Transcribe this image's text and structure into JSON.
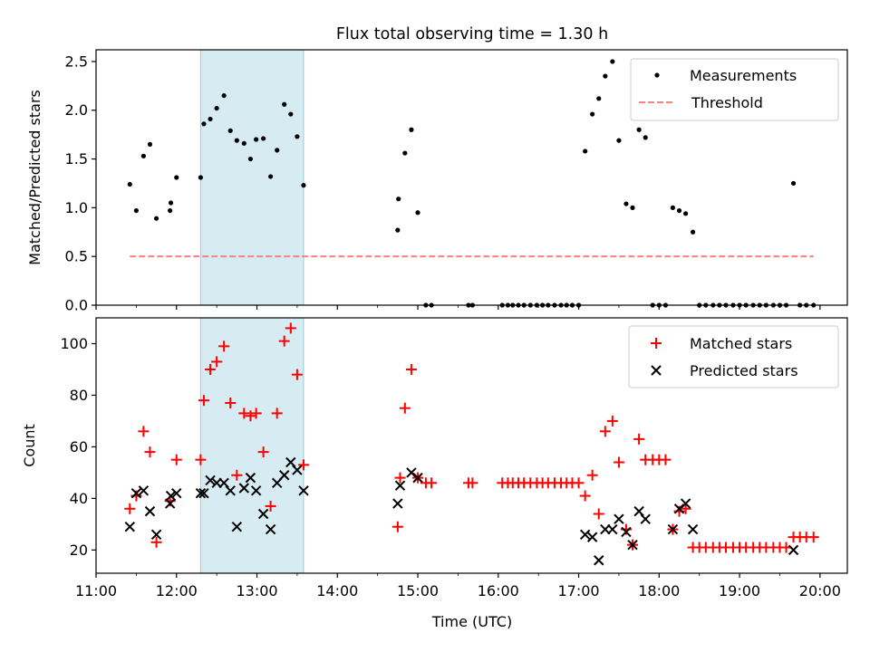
{
  "title": "Flux total observing time = 1.30 h",
  "chart_data": [
    {
      "type": "scatter",
      "ylabel": "Matched/Predicted stars",
      "ylim": [
        0,
        2.62
      ],
      "xlim": [
        11.0,
        20.34
      ],
      "yticks": [
        0.0,
        0.5,
        1.0,
        1.5,
        2.0,
        2.5
      ],
      "ytick_labels": [
        "0.0",
        "0.5",
        "1.0",
        "1.5",
        "2.0",
        "2.5"
      ],
      "legend_position": "top-right",
      "highlight_span": [
        12.3,
        13.58
      ],
      "highlight_color": "#add8e6",
      "series": [
        {
          "name": "Measurements",
          "marker": "dot",
          "color": "#000000",
          "x": [
            11.42,
            11.5,
            11.59,
            11.67,
            11.75,
            11.92,
            11.93,
            12.0,
            12.3,
            12.34,
            12.42,
            12.5,
            12.59,
            12.67,
            12.75,
            12.84,
            12.92,
            12.99,
            13.08,
            13.17,
            13.25,
            13.34,
            13.42,
            13.5,
            13.58,
            14.75,
            14.76,
            14.84,
            14.92,
            15.0,
            15.1,
            15.17,
            15.63,
            15.68,
            16.05,
            16.12,
            16.18,
            16.25,
            16.32,
            16.4,
            16.48,
            16.55,
            16.62,
            16.7,
            16.78,
            16.85,
            16.92,
            17.0,
            17.08,
            17.17,
            17.25,
            17.33,
            17.42,
            17.5,
            17.59,
            17.67,
            17.75,
            17.83,
            17.92,
            18.0,
            18.08,
            18.17,
            18.25,
            18.33,
            18.42,
            18.5,
            18.58,
            18.67,
            18.75,
            18.83,
            18.92,
            19.0,
            19.08,
            19.17,
            19.25,
            19.33,
            19.42,
            19.5,
            19.58,
            19.67,
            19.75,
            19.83,
            19.92
          ],
          "y": [
            1.24,
            0.97,
            1.53,
            1.65,
            0.89,
            0.97,
            1.05,
            1.31,
            1.31,
            1.86,
            1.91,
            2.02,
            2.15,
            1.79,
            1.69,
            1.66,
            1.5,
            1.7,
            1.71,
            1.32,
            1.59,
            2.06,
            1.96,
            1.73,
            1.23,
            0.77,
            1.09,
            1.56,
            1.8,
            0.95,
            0.0,
            0.0,
            0.0,
            0.0,
            0.0,
            0.0,
            0.0,
            0.0,
            0.0,
            0.0,
            0.0,
            0.0,
            0.0,
            0.0,
            0.0,
            0.0,
            0.0,
            0.0,
            1.58,
            1.96,
            2.12,
            2.35,
            2.5,
            1.69,
            1.04,
            1.0,
            1.8,
            1.72,
            0.0,
            0.0,
            0.0,
            1.0,
            0.97,
            0.94,
            0.75,
            0.0,
            0.0,
            0.0,
            0.0,
            0.0,
            0.0,
            0.0,
            0.0,
            0.0,
            0.0,
            0.0,
            0.0,
            0.0,
            0.0,
            1.25,
            0.0,
            0.0,
            0.0
          ]
        },
        {
          "name": "Threshold",
          "marker": "dashed-line",
          "color": "#ff8080",
          "x": [
            11.42,
            19.92
          ],
          "y": [
            0.5,
            0.5
          ]
        }
      ]
    },
    {
      "type": "scatter",
      "ylabel": "Count",
      "xlabel": "Time (UTC)",
      "ylim": [
        11,
        110
      ],
      "xlim": [
        11.0,
        20.34
      ],
      "yticks": [
        20,
        40,
        60,
        80,
        100
      ],
      "ytick_labels": [
        "20",
        "40",
        "60",
        "80",
        "100"
      ],
      "xticks": [
        11,
        12,
        13,
        14,
        15,
        16,
        17,
        18,
        19,
        20
      ],
      "xtick_labels": [
        "11:00",
        "12:00",
        "13:00",
        "14:00",
        "15:00",
        "16:00",
        "17:00",
        "18:00",
        "19:00",
        "20:00"
      ],
      "legend_position": "top-right",
      "highlight_span": [
        12.3,
        13.58
      ],
      "highlight_color": "#add8e6",
      "series": [
        {
          "name": "Matched stars",
          "marker": "plus",
          "color": "#ff0000",
          "x": [
            11.42,
            11.5,
            11.59,
            11.67,
            11.75,
            11.92,
            12.0,
            12.3,
            12.34,
            12.42,
            12.5,
            12.59,
            12.67,
            12.75,
            12.84,
            12.92,
            12.99,
            13.08,
            13.17,
            13.25,
            13.34,
            13.42,
            13.5,
            13.58,
            14.75,
            14.78,
            14.84,
            14.92,
            15.0,
            15.1,
            15.17,
            15.63,
            15.68,
            16.05,
            16.12,
            16.18,
            16.25,
            16.32,
            16.4,
            16.48,
            16.55,
            16.62,
            16.7,
            16.78,
            16.85,
            16.92,
            17.0,
            17.08,
            17.17,
            17.25,
            17.33,
            17.42,
            17.5,
            17.59,
            17.67,
            17.75,
            17.83,
            17.92,
            18.0,
            18.08,
            18.17,
            18.25,
            18.33,
            18.42,
            18.5,
            18.58,
            18.67,
            18.75,
            18.83,
            18.92,
            19.0,
            19.08,
            19.17,
            19.25,
            19.33,
            19.42,
            19.5,
            19.58,
            19.67,
            19.75,
            19.83,
            19.92
          ],
          "y": [
            36,
            41,
            66,
            58,
            23,
            39,
            55,
            55,
            78,
            90,
            93,
            99,
            77,
            49,
            73,
            72,
            73,
            58,
            37,
            73,
            101,
            106,
            88,
            53,
            29,
            48,
            75,
            90,
            48,
            46,
            46,
            46,
            46,
            46,
            46,
            46,
            46,
            46,
            46,
            46,
            46,
            46,
            46,
            46,
            46,
            46,
            46,
            41,
            49,
            34,
            66,
            70,
            54,
            28,
            22,
            63,
            55,
            55,
            55,
            55,
            28,
            35,
            36,
            21,
            21,
            21,
            21,
            21,
            21,
            21,
            21,
            21,
            21,
            21,
            21,
            21,
            21,
            21,
            25,
            25,
            25,
            25
          ]
        },
        {
          "name": "Predicted stars",
          "marker": "x",
          "color": "#000000",
          "x": [
            11.42,
            11.5,
            11.59,
            11.67,
            11.75,
            11.92,
            11.93,
            12.0,
            12.3,
            12.34,
            12.42,
            12.5,
            12.59,
            12.67,
            12.75,
            12.84,
            12.92,
            12.99,
            13.08,
            13.17,
            13.25,
            13.34,
            13.42,
            13.5,
            13.58,
            14.75,
            14.78,
            14.92,
            15.0,
            17.08,
            17.17,
            17.25,
            17.33,
            17.42,
            17.5,
            17.59,
            17.67,
            17.75,
            17.83,
            18.17,
            18.25,
            18.33,
            18.42,
            19.67
          ],
          "y": [
            29,
            42,
            43,
            35,
            26,
            38,
            41,
            42,
            42,
            42,
            47,
            46,
            46,
            43,
            29,
            44,
            48,
            43,
            34,
            28,
            46,
            49,
            54,
            51,
            43,
            38,
            45,
            50,
            48,
            26,
            25,
            16,
            28,
            28,
            32,
            27,
            22,
            35,
            32,
            28,
            36,
            38,
            28,
            20
          ]
        }
      ]
    }
  ]
}
